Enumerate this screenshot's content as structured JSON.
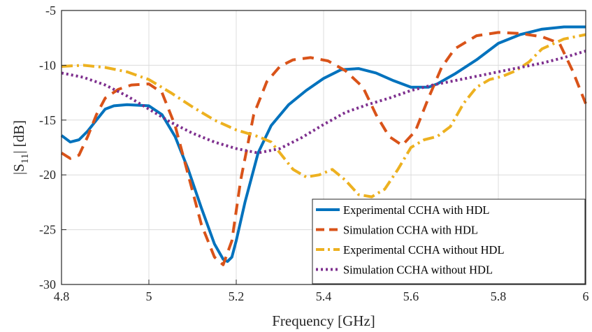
{
  "chart_data": {
    "type": "line",
    "title": "",
    "xlabel": "Frequency [GHz]",
    "ylabel_main": "|S",
    "ylabel_sub": "11",
    "ylabel_tail": "| [dB]",
    "xlim": [
      4.8,
      6.0
    ],
    "ylim": [
      -30,
      -5
    ],
    "grid": true,
    "legend_position": "bottom-right",
    "x_ticks": [
      4.8,
      5.0,
      5.2,
      5.4,
      5.6,
      5.8,
      6.0
    ],
    "x_tick_labels": [
      "4.8",
      "5",
      "5.2",
      "5.4",
      "5.6",
      "5.8",
      "6"
    ],
    "y_ticks": [
      -5,
      -10,
      -15,
      -20,
      -25,
      -30
    ],
    "y_tick_labels": [
      "-5",
      "-10",
      "-15",
      "-20",
      "-25",
      "-30"
    ],
    "series": [
      {
        "name": "Experimental CCHA with HDL",
        "color": "#0072BD",
        "style": "solid",
        "x": [
          4.8,
          4.82,
          4.84,
          4.86,
          4.88,
          4.9,
          4.92,
          4.95,
          5.0,
          5.03,
          5.06,
          5.09,
          5.12,
          5.15,
          5.17,
          5.18,
          5.19,
          5.2,
          5.22,
          5.25,
          5.28,
          5.32,
          5.36,
          5.4,
          5.44,
          5.48,
          5.52,
          5.56,
          5.6,
          5.64,
          5.66,
          5.7,
          5.75,
          5.8,
          5.85,
          5.9,
          5.95,
          6.0
        ],
        "y": [
          -16.4,
          -17.0,
          -16.8,
          -16.0,
          -15.0,
          -14.0,
          -13.7,
          -13.6,
          -13.7,
          -14.5,
          -16.5,
          -19.5,
          -23.0,
          -26.3,
          -27.7,
          -27.9,
          -27.5,
          -26.0,
          -22.5,
          -18.0,
          -15.5,
          -13.6,
          -12.3,
          -11.2,
          -10.4,
          -10.3,
          -10.7,
          -11.4,
          -12.0,
          -12.0,
          -11.7,
          -10.8,
          -9.5,
          -8.0,
          -7.2,
          -6.7,
          -6.5,
          -6.5
        ]
      },
      {
        "name": "Simulation CCHA with HDL",
        "color": "#D95319",
        "style": "dash",
        "x": [
          4.8,
          4.82,
          4.84,
          4.86,
          4.88,
          4.9,
          4.93,
          4.96,
          5.0,
          5.03,
          5.06,
          5.09,
          5.12,
          5.15,
          5.17,
          5.19,
          5.21,
          5.24,
          5.27,
          5.3,
          5.33,
          5.37,
          5.41,
          5.45,
          5.49,
          5.52,
          5.55,
          5.58,
          5.61,
          5.64,
          5.67,
          5.7,
          5.75,
          5.8,
          5.85,
          5.9,
          5.94,
          5.97,
          6.0
        ],
        "y": [
          -18.0,
          -18.5,
          -18.2,
          -16.5,
          -14.5,
          -13.0,
          -12.2,
          -11.8,
          -11.7,
          -12.5,
          -15.5,
          -20.0,
          -24.5,
          -27.5,
          -28.2,
          -26.0,
          -20.5,
          -14.5,
          -11.5,
          -10.1,
          -9.5,
          -9.3,
          -9.6,
          -10.5,
          -12.0,
          -14.5,
          -16.5,
          -17.3,
          -16.0,
          -13.0,
          -10.2,
          -8.5,
          -7.3,
          -7.0,
          -7.1,
          -7.4,
          -8.0,
          -10.5,
          -13.5
        ]
      },
      {
        "name": "Experimental CCHA without HDL",
        "color": "#EDB120",
        "style": "dashdot",
        "x": [
          4.8,
          4.85,
          4.9,
          4.95,
          5.0,
          5.05,
          5.1,
          5.15,
          5.2,
          5.25,
          5.28,
          5.3,
          5.33,
          5.36,
          5.39,
          5.42,
          5.45,
          5.48,
          5.51,
          5.54,
          5.57,
          5.6,
          5.63,
          5.66,
          5.69,
          5.72,
          5.75,
          5.78,
          5.81,
          5.84,
          5.87,
          5.9,
          5.95,
          6.0
        ],
        "y": [
          -10.1,
          -10.0,
          -10.2,
          -10.6,
          -11.3,
          -12.5,
          -13.8,
          -15.0,
          -15.9,
          -16.5,
          -17.0,
          -18.0,
          -19.5,
          -20.2,
          -20.0,
          -19.5,
          -20.5,
          -21.8,
          -22.0,
          -21.3,
          -19.5,
          -17.5,
          -16.8,
          -16.5,
          -15.6,
          -13.5,
          -12.0,
          -11.3,
          -11.0,
          -10.5,
          -9.7,
          -8.5,
          -7.6,
          -7.2
        ]
      },
      {
        "name": "Simulation CCHA without HDL",
        "color": "#7E2F8E",
        "style": "dot",
        "x": [
          4.8,
          4.85,
          4.9,
          4.95,
          5.0,
          5.05,
          5.1,
          5.15,
          5.2,
          5.25,
          5.3,
          5.35,
          5.4,
          5.45,
          5.5,
          5.55,
          5.6,
          5.65,
          5.7,
          5.75,
          5.8,
          5.85,
          5.9,
          5.95,
          6.0
        ],
        "y": [
          -10.7,
          -11.1,
          -11.8,
          -12.8,
          -14.0,
          -15.2,
          -16.2,
          -17.0,
          -17.6,
          -18.0,
          -17.6,
          -16.6,
          -15.4,
          -14.3,
          -13.6,
          -13.0,
          -12.3,
          -11.8,
          -11.4,
          -11.0,
          -10.6,
          -10.2,
          -9.8,
          -9.3,
          -8.7
        ]
      }
    ]
  }
}
